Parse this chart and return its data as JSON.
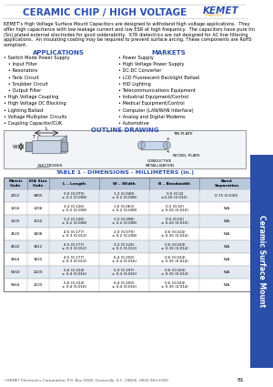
{
  "title": "CERAMIC CHIP / HIGH VOLTAGE",
  "header_color": "#2b4fa8",
  "kemet_color": "#2b4fa8",
  "charged_color": "#f5a623",
  "body_text": "KEMET’s High Voltage Surface Mount Capacitors are designed to withstand high voltage applications.  They offer high capacitance with low leakage current and low ESR at high frequency.  The capacitors have pure tin (Sn) plated external electrodes for good solderability.  X7R dielectrics are not designed for AC line filtering applications.  An insulating coating may be required to prevent surface arcing. These components are RoHS compliant.",
  "applications_title": "APPLICATIONS",
  "applications": [
    "• Switch Mode Power Supply",
    "   • Input Filter",
    "   • Resonators",
    "   • Tank Circuit",
    "   • Snubber Circuit",
    "   • Output Filter",
    "• High Voltage Coupling",
    "• High Voltage DC Blocking",
    "• Lighting Ballast",
    "• Voltage Multiplier Circuits",
    "• Coupling Capacitor/CUK"
  ],
  "markets_title": "MARKETS",
  "markets": [
    "• Power Supply",
    "• High Voltage Power Supply",
    "• DC-DC Converter",
    "• LCD Fluorescent Backlight Ballast",
    "• HID Lighting",
    "• Telecommunications Equipment",
    "• Industrial Equipment/Control",
    "• Medical Equipment/Control",
    "• Computer (LAN/WAN Interface)",
    "• Analog and Digital Modems",
    "• Automotive"
  ],
  "outline_title": "OUTLINE DRAWING",
  "table_title": "TABLE 1 - DIMENSIONS - MILLIMETERS (in.)",
  "table_headers": [
    "Metric\nCode",
    "EIA Size\nCode",
    "L – Length",
    "W – Width",
    "B – Bandwidth",
    "Band\nSeparation"
  ],
  "table_data": [
    [
      "2012",
      "0805",
      "2.0 (0.079)\n± 0.2 (0.008)",
      "1.2 (0.049)\n± 0.2 (0.008)",
      "0.5 (0.02\n±0.25 (0.010)",
      "0.75 (0.030)"
    ],
    [
      "3216",
      "1206",
      "3.2 (0.126)\n± 0.2 (0.008)",
      "1.6 (0.063)\n± 0.2 (0.008)",
      "0.5 (0.02)\n± 0.25 (0.010)",
      "N/A"
    ],
    [
      "3225",
      "1210",
      "3.2 (0.126)\n± 0.2 (0.008)",
      "2.5 (0.098)\n± 0.2 (0.008)",
      "0.5 (0.02)\n± 0.25 (0.010)",
      "N/A"
    ],
    [
      "4520",
      "1808",
      "4.5 (0.177)\n± 0.3 (0.012)",
      "2.0 (0.079)\n± 0.2 (0.008)",
      "0.6 (0.024)\n± 0.35 (0.014)",
      "N/A"
    ],
    [
      "4532",
      "1812",
      "4.5 (0.177)\n± 0.3 (0.012)",
      "3.2 (0.126)\n± 0.3 (0.012)",
      "0.6 (0.024)\n± 0.35 (0.014)",
      "N/A"
    ],
    [
      "4564",
      "1825",
      "4.5 (0.177)\n± 0.3 (0.012)",
      "6.4 (0.250)\n± 0.4 (0.016)",
      "0.6 (0.024)\n± 0.35 (0.014)",
      "N/A"
    ],
    [
      "5650",
      "2220",
      "5.6 (0.224)\n± 0.4 (0.016)",
      "5.0 (0.197)\n± 0.4 (0.016)",
      "0.6 (0.024)\n± 0.35 (0.014)",
      "N/A"
    ],
    [
      "5664",
      "2225",
      "5.6 (0.224)\n± 0.4 (0.016)",
      "6.4 (0.250)\n± 0.4 (0.016)",
      "0.6 (0.024)\n± 0.35 (0.014)",
      "N/A"
    ]
  ],
  "footer_text": "©KEMET Electronics Corporation, P.O. Box 5928, Greenville, S.C. 29606, (864) 963-6300",
  "page_number": "81",
  "sidebar_text": "Ceramic Surface Mount",
  "bg_color": "#ffffff",
  "table_header_bg": "#b8c8dc",
  "table_row_alt": "#e4eaf2",
  "table_border": "#666666"
}
